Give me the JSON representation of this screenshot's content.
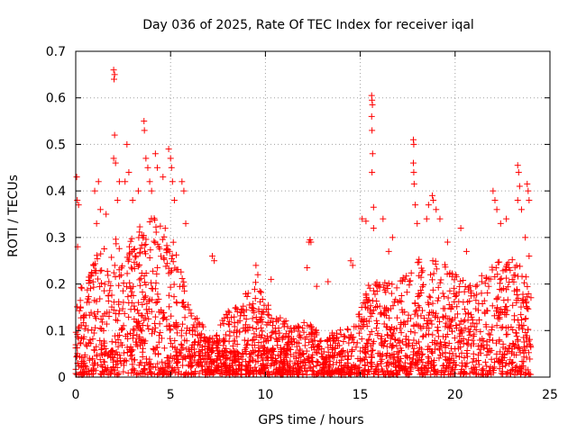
{
  "chart_data": {
    "type": "scatter",
    "title": "Day 036 of 2025, Rate Of TEC Index for receiver iqal",
    "xlabel": "GPS time / hours",
    "ylabel": "ROTI / TECUs",
    "xlim": [
      0,
      25
    ],
    "ylim": [
      0,
      0.7
    ],
    "xticks": [
      0,
      5,
      10,
      15,
      20,
      25
    ],
    "xtick_labels": [
      "0",
      "5",
      "10",
      "15",
      "20",
      "25"
    ],
    "yticks": [
      0,
      0.1,
      0.2,
      0.3,
      0.4,
      0.5,
      0.6,
      0.7
    ],
    "ytick_labels": [
      "0",
      "0.1",
      "0.2",
      "0.3",
      "0.4",
      "0.5",
      "0.6",
      "0.7"
    ],
    "grid": true,
    "marker": "plus",
    "series_color": "#ff0000",
    "series": [
      {
        "name": "ROTI",
        "envelope": {
          "hours": [
            0.0,
            0.5,
            1.0,
            1.5,
            2.0,
            2.5,
            3.0,
            3.5,
            4.0,
            4.5,
            5.0,
            5.5,
            6.0,
            6.5,
            7.0,
            7.5,
            8.0,
            8.5,
            9.0,
            9.5,
            10.0,
            10.5,
            11.0,
            11.5,
            12.0,
            12.5,
            13.0,
            13.5,
            14.0,
            14.5,
            15.0,
            15.5,
            16.0,
            16.5,
            17.0,
            17.5,
            18.0,
            18.5,
            19.0,
            19.5,
            20.0,
            20.5,
            21.0,
            21.5,
            22.0,
            22.5,
            23.0,
            23.5,
            24.0
          ],
          "typical_max": [
            0.18,
            0.2,
            0.25,
            0.28,
            0.3,
            0.28,
            0.3,
            0.33,
            0.35,
            0.33,
            0.3,
            0.25,
            0.16,
            0.12,
            0.09,
            0.1,
            0.14,
            0.16,
            0.18,
            0.2,
            0.16,
            0.13,
            0.12,
            0.1,
            0.12,
            0.11,
            0.08,
            0.09,
            0.1,
            0.11,
            0.14,
            0.2,
            0.22,
            0.2,
            0.2,
            0.22,
            0.26,
            0.24,
            0.25,
            0.24,
            0.22,
            0.2,
            0.19,
            0.22,
            0.25,
            0.24,
            0.25,
            0.23,
            0.2
          ]
        },
        "outliers": [
          [
            0.05,
            0.43
          ],
          [
            0.08,
            0.38
          ],
          [
            0.15,
            0.37
          ],
          [
            0.1,
            0.28
          ],
          [
            1.0,
            0.4
          ],
          [
            1.1,
            0.33
          ],
          [
            1.2,
            0.42
          ],
          [
            1.3,
            0.36
          ],
          [
            1.6,
            0.35
          ],
          [
            2.0,
            0.66
          ],
          [
            2.02,
            0.64
          ],
          [
            2.05,
            0.65
          ],
          [
            2.05,
            0.52
          ],
          [
            2.0,
            0.47
          ],
          [
            2.1,
            0.46
          ],
          [
            2.3,
            0.42
          ],
          [
            2.2,
            0.38
          ],
          [
            2.6,
            0.42
          ],
          [
            2.7,
            0.5
          ],
          [
            2.8,
            0.44
          ],
          [
            3.0,
            0.38
          ],
          [
            3.3,
            0.4
          ],
          [
            3.6,
            0.55
          ],
          [
            3.62,
            0.53
          ],
          [
            3.7,
            0.47
          ],
          [
            3.8,
            0.45
          ],
          [
            3.9,
            0.42
          ],
          [
            4.0,
            0.4
          ],
          [
            4.2,
            0.48
          ],
          [
            4.3,
            0.45
          ],
          [
            4.6,
            0.43
          ],
          [
            4.9,
            0.49
          ],
          [
            5.0,
            0.47
          ],
          [
            5.05,
            0.45
          ],
          [
            5.1,
            0.42
          ],
          [
            5.2,
            0.38
          ],
          [
            5.6,
            0.42
          ],
          [
            5.7,
            0.4
          ],
          [
            5.8,
            0.33
          ],
          [
            7.2,
            0.26
          ],
          [
            7.3,
            0.25
          ],
          [
            9.5,
            0.24
          ],
          [
            9.6,
            0.22
          ],
          [
            10.3,
            0.21
          ],
          [
            12.3,
            0.29
          ],
          [
            12.35,
            0.295
          ],
          [
            12.4,
            0.29
          ],
          [
            12.2,
            0.235
          ],
          [
            12.7,
            0.195
          ],
          [
            13.3,
            0.205
          ],
          [
            14.5,
            0.25
          ],
          [
            14.6,
            0.24
          ],
          [
            15.1,
            0.34
          ],
          [
            15.3,
            0.335
          ],
          [
            15.6,
            0.605
          ],
          [
            15.62,
            0.595
          ],
          [
            15.64,
            0.585
          ],
          [
            15.6,
            0.56
          ],
          [
            15.62,
            0.53
          ],
          [
            15.65,
            0.48
          ],
          [
            15.62,
            0.44
          ],
          [
            15.7,
            0.365
          ],
          [
            15.7,
            0.32
          ],
          [
            16.2,
            0.34
          ],
          [
            16.5,
            0.27
          ],
          [
            16.7,
            0.3
          ],
          [
            17.8,
            0.51
          ],
          [
            17.82,
            0.5
          ],
          [
            17.8,
            0.46
          ],
          [
            17.82,
            0.44
          ],
          [
            17.84,
            0.415
          ],
          [
            17.9,
            0.37
          ],
          [
            18.0,
            0.33
          ],
          [
            18.5,
            0.34
          ],
          [
            18.6,
            0.37
          ],
          [
            18.8,
            0.39
          ],
          [
            18.85,
            0.38
          ],
          [
            19.0,
            0.36
          ],
          [
            19.2,
            0.34
          ],
          [
            19.6,
            0.29
          ],
          [
            20.3,
            0.32
          ],
          [
            20.6,
            0.27
          ],
          [
            22.0,
            0.4
          ],
          [
            22.1,
            0.38
          ],
          [
            22.2,
            0.36
          ],
          [
            22.4,
            0.33
          ],
          [
            22.7,
            0.34
          ],
          [
            23.3,
            0.455
          ],
          [
            23.35,
            0.44
          ],
          [
            23.4,
            0.41
          ],
          [
            23.3,
            0.38
          ],
          [
            23.5,
            0.36
          ],
          [
            23.8,
            0.415
          ],
          [
            23.85,
            0.4
          ],
          [
            23.9,
            0.38
          ],
          [
            23.7,
            0.3
          ],
          [
            23.9,
            0.26
          ]
        ]
      }
    ]
  }
}
